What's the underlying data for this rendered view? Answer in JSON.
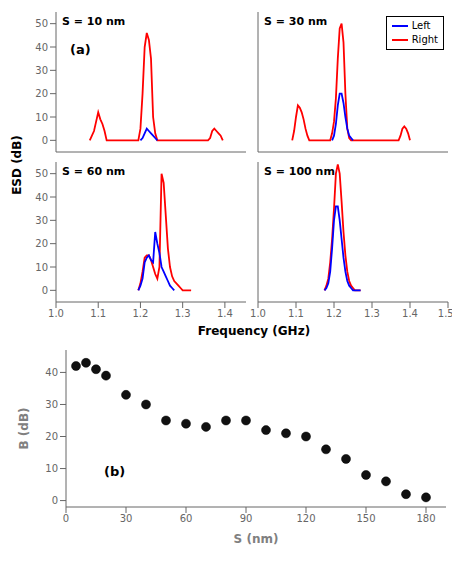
{
  "chart_data": [
    {
      "type": "line",
      "title": "S = 10 nm",
      "annotations": [
        "(a)"
      ],
      "xlabel": "Frequency (GHz)",
      "ylabel": "ESD (dB)",
      "xlim": [
        1.0,
        1.45
      ],
      "ylim": [
        -5,
        55
      ],
      "xticks": [
        {
          "value": 1.0,
          "label": "1.0"
        },
        1.1,
        1.2,
        1.3,
        1.4
      ],
      "yticks": [
        0,
        10,
        20,
        30,
        40,
        50
      ],
      "tick_labels": "y",
      "series": [
        {
          "name": "Right",
          "color": "#ff0000",
          "x": [
            1.08,
            1.09,
            1.095,
            1.1,
            1.105,
            1.11,
            1.115,
            1.12,
            1.195,
            1.2,
            1.205,
            1.21,
            1.215,
            1.22,
            1.225,
            1.23,
            1.235,
            1.24,
            1.36,
            1.365,
            1.37,
            1.375,
            1.38,
            1.385,
            1.39,
            1.395
          ],
          "values": [
            0,
            4,
            8,
            12,
            9,
            7,
            4,
            0,
            0,
            5,
            20,
            40,
            46,
            43,
            35,
            10,
            3,
            0,
            0,
            1,
            4,
            5,
            4,
            3,
            2,
            0
          ]
        },
        {
          "name": "Left",
          "color": "#0000ff",
          "x": [
            1.2,
            1.205,
            1.21,
            1.215,
            1.22,
            1.225,
            1.23,
            1.235,
            1.24
          ],
          "values": [
            0,
            1,
            3,
            5,
            4,
            3,
            2,
            1,
            0
          ]
        }
      ]
    },
    {
      "type": "line",
      "title": "S = 30 nm",
      "xlim": [
        1.0,
        1.5
      ],
      "ylim": [
        -5,
        55
      ],
      "xticks": [
        {
          "value": 1.0,
          "label": "1.0"
        },
        1.1,
        1.2,
        1.3,
        1.4,
        1.5
      ],
      "yticks": [
        0,
        10,
        20,
        30,
        40,
        50
      ],
      "tick_labels": false,
      "legend": "upper right",
      "series": [
        {
          "name": "Right",
          "color": "#ff0000",
          "x": [
            1.09,
            1.095,
            1.1,
            1.105,
            1.11,
            1.115,
            1.12,
            1.125,
            1.13,
            1.135,
            1.19,
            1.195,
            1.2,
            1.205,
            1.21,
            1.215,
            1.22,
            1.225,
            1.23,
            1.235,
            1.24,
            1.245,
            1.37,
            1.375,
            1.38,
            1.385,
            1.39,
            1.395,
            1.4
          ],
          "values": [
            0,
            4,
            10,
            15,
            14,
            12,
            9,
            5,
            2,
            0,
            0,
            3,
            8,
            18,
            35,
            48,
            50,
            42,
            20,
            5,
            1,
            0,
            0,
            2,
            5,
            6,
            5,
            3,
            0
          ]
        },
        {
          "name": "Left",
          "color": "#0000ff",
          "x": [
            1.195,
            1.2,
            1.205,
            1.21,
            1.215,
            1.22,
            1.225,
            1.23,
            1.235,
            1.24,
            1.245,
            1.25
          ],
          "values": [
            0,
            2,
            7,
            15,
            20,
            20,
            16,
            10,
            5,
            2,
            1,
            0
          ]
        }
      ]
    },
    {
      "type": "line",
      "title": "S = 60 nm",
      "xlim": [
        1.0,
        1.45
      ],
      "ylim": [
        -5,
        55
      ],
      "xticks": [
        {
          "value": 1.0,
          "label": "1.0"
        },
        1.1,
        1.2,
        1.3,
        1.4
      ],
      "yticks": [
        0,
        10,
        20,
        30,
        40,
        50
      ],
      "series": [
        {
          "name": "Right",
          "color": "#ff0000",
          "x": [
            1.195,
            1.2,
            1.205,
            1.21,
            1.215,
            1.22,
            1.225,
            1.23,
            1.235,
            1.24,
            1.245,
            1.25,
            1.255,
            1.26,
            1.265,
            1.27,
            1.275,
            1.28,
            1.29,
            1.295,
            1.3,
            1.305,
            1.31,
            1.315,
            1.32
          ],
          "values": [
            0,
            3,
            8,
            14,
            15,
            15,
            13,
            10,
            7,
            5,
            10,
            50,
            46,
            32,
            18,
            10,
            6,
            4,
            2,
            1,
            0,
            0,
            0,
            0,
            0
          ]
        },
        {
          "name": "Left",
          "color": "#0000ff",
          "x": [
            1.195,
            1.2,
            1.205,
            1.21,
            1.215,
            1.22,
            1.225,
            1.23,
            1.235,
            1.24,
            1.245,
            1.25,
            1.255,
            1.26,
            1.265,
            1.27,
            1.275,
            1.28
          ],
          "values": [
            0,
            2,
            5,
            12,
            14,
            15,
            13,
            12,
            25,
            20,
            16,
            10,
            8,
            6,
            4,
            2,
            1,
            0
          ]
        }
      ]
    },
    {
      "type": "line",
      "title": "S = 100 nm",
      "xlim": [
        1.0,
        1.5
      ],
      "ylim": [
        -5,
        55
      ],
      "xticks": [
        {
          "value": 1.0,
          "label": "1.0"
        },
        1.1,
        1.2,
        1.3,
        1.4,
        1.5
      ],
      "yticks": [
        0,
        10,
        20,
        30,
        40,
        50
      ],
      "tick_labels": "x",
      "series": [
        {
          "name": "Right",
          "color": "#ff0000",
          "x": [
            1.175,
            1.18,
            1.185,
            1.19,
            1.195,
            1.2,
            1.205,
            1.21,
            1.215,
            1.22,
            1.225,
            1.23,
            1.235,
            1.24,
            1.245,
            1.25,
            1.255,
            1.26,
            1.265,
            1.27
          ],
          "values": [
            0,
            2,
            5,
            12,
            22,
            35,
            50,
            54,
            50,
            38,
            25,
            15,
            8,
            4,
            2,
            1,
            0,
            0,
            0,
            0
          ]
        },
        {
          "name": "Left",
          "color": "#0000ff",
          "x": [
            1.175,
            1.18,
            1.185,
            1.19,
            1.195,
            1.2,
            1.205,
            1.21,
            1.215,
            1.22,
            1.225,
            1.23,
            1.235,
            1.24,
            1.245,
            1.25,
            1.255,
            1.26,
            1.265,
            1.27
          ],
          "values": [
            0,
            1,
            3,
            8,
            18,
            30,
            36,
            36,
            30,
            22,
            14,
            8,
            4,
            2,
            1,
            0,
            0,
            0,
            0,
            0
          ]
        }
      ]
    },
    {
      "type": "scatter",
      "xlabel": "S (nm)",
      "ylabel": "B (dB)",
      "annotations": [
        "(b)"
      ],
      "xlim": [
        0,
        190
      ],
      "ylim": [
        -2,
        47
      ],
      "xticks": [
        0,
        30,
        60,
        90,
        120,
        150,
        180
      ],
      "yticks": [
        0,
        10,
        20,
        30,
        40
      ],
      "color": "#111111",
      "x": [
        5,
        10,
        15,
        20,
        30,
        40,
        50,
        60,
        70,
        80,
        90,
        100,
        110,
        120,
        130,
        140,
        150,
        160,
        170,
        180
      ],
      "values": [
        42,
        43,
        41,
        39,
        33,
        30,
        25,
        24,
        23,
        25,
        25,
        22,
        21,
        20,
        16,
        13,
        8,
        6,
        2,
        1
      ]
    }
  ]
}
